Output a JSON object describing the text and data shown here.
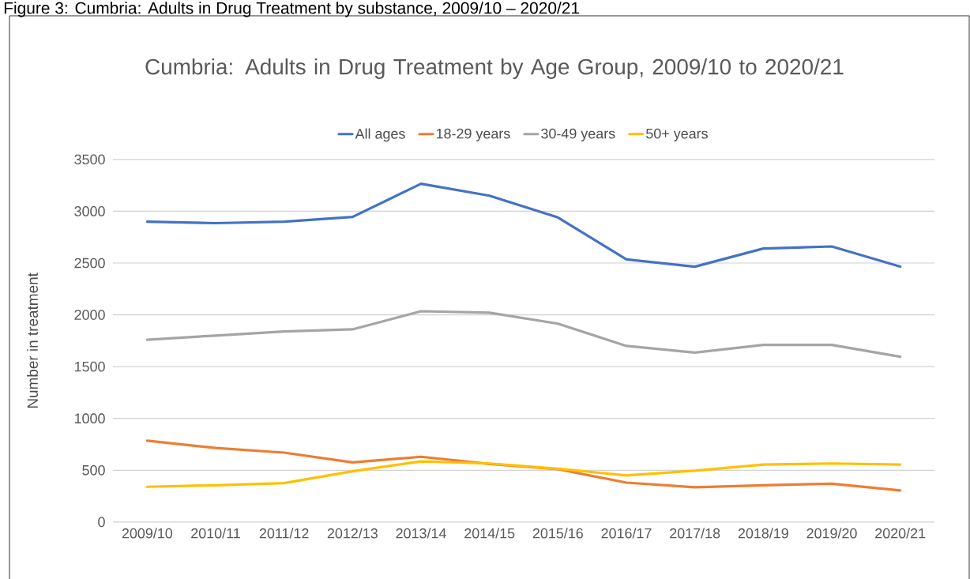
{
  "chart_data": {
    "type": "line",
    "title": "Cumbria: Adults in Drug Treatment by Age Group, 2009/10 to 2020/21",
    "ylabel": "Number in treatment",
    "annotations": [
      "Figure 3: Cumbria: Adults in Drug Treatment by substance, 2009/10 – 2020/21"
    ],
    "categories": [
      "2009/10",
      "2010/11",
      "2011/12",
      "2012/13",
      "2013/14",
      "2014/15",
      "2015/16",
      "2016/17",
      "2017/18",
      "2018/19",
      "2019/20",
      "2020/21"
    ],
    "series": [
      {
        "name": "All ages",
        "color": "#4472c4",
        "values": [
          2900,
          2885,
          2900,
          2945,
          3265,
          3150,
          2940,
          2535,
          2465,
          2640,
          2660,
          2465
        ]
      },
      {
        "name": "18-29 years",
        "color": "#ed7d31",
        "values": [
          785,
          715,
          670,
          575,
          630,
          560,
          510,
          380,
          335,
          355,
          370,
          305
        ]
      },
      {
        "name": "30-49 years",
        "color": "#a5a5a5",
        "values": [
          1760,
          1800,
          1840,
          1860,
          2035,
          2020,
          1915,
          1700,
          1635,
          1710,
          1710,
          1595
        ]
      },
      {
        "name": "50+ years",
        "color": "#ffc000",
        "values": [
          340,
          355,
          375,
          490,
          585,
          565,
          515,
          450,
          495,
          555,
          565,
          555
        ]
      }
    ],
    "ylim": [
      0,
      3500
    ],
    "yticks": [
      0,
      500,
      1000,
      1500,
      2000,
      2500,
      3000,
      3500
    ],
    "grid": "y",
    "legend": "top"
  }
}
